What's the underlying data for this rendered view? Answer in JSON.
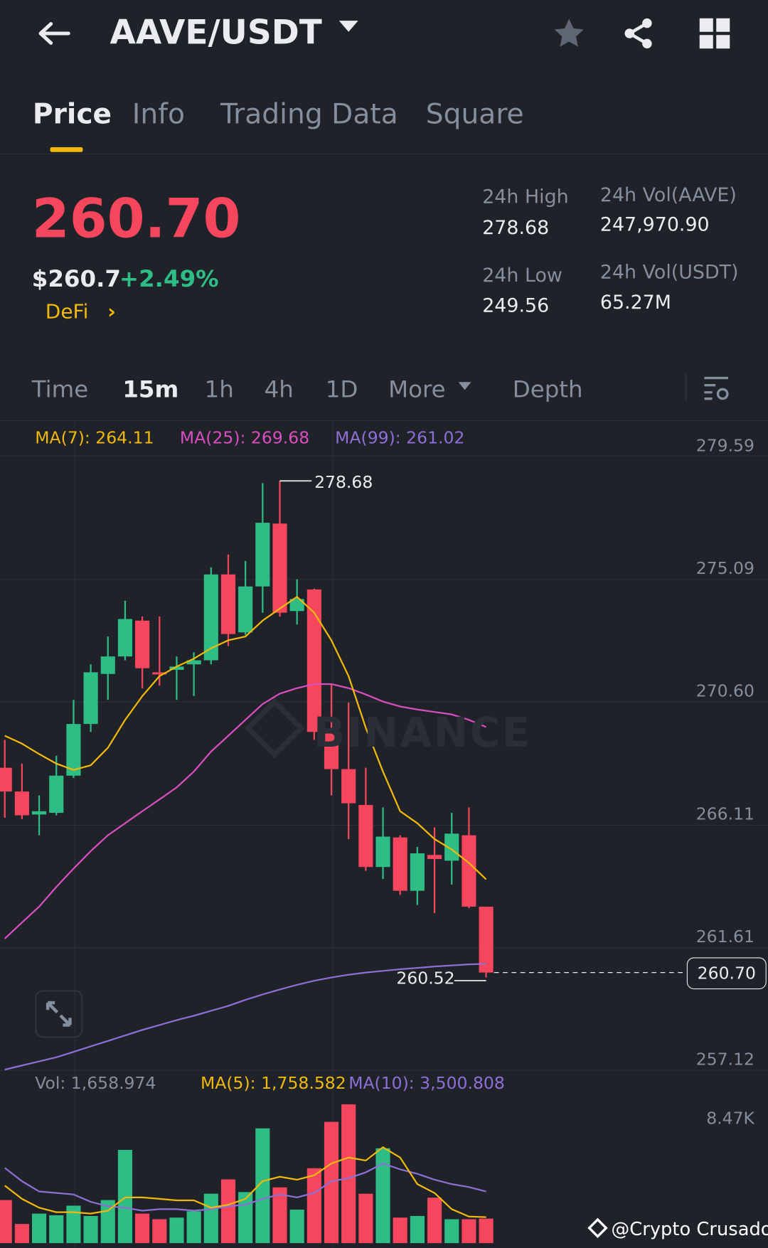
{
  "header": {
    "title": "AAVE/USDT",
    "icons": [
      "back-arrow-icon",
      "caret-down-icon",
      "star-icon",
      "share-icon",
      "grid-icon"
    ]
  },
  "tabs": [
    {
      "label": "Price",
      "active": true
    },
    {
      "label": "Info"
    },
    {
      "label": "Trading Data"
    },
    {
      "label": "Square"
    }
  ],
  "ticker": {
    "last_price": "260.70",
    "usd_price": "$260.7",
    "change": "+2.49%",
    "tag": "DeFi",
    "stats": {
      "high_label": "24h High",
      "high": "278.68",
      "low_label": "24h Low",
      "low": "249.56",
      "vol_base_label": "24h Vol(AAVE)",
      "vol_base": "247,970.90",
      "vol_quote_label": "24h Vol(USDT)",
      "vol_quote": "65.27M"
    }
  },
  "intervals": [
    {
      "label": "Time"
    },
    {
      "label": "15m",
      "active": true
    },
    {
      "label": "1h"
    },
    {
      "label": "4h"
    },
    {
      "label": "1D"
    },
    {
      "label": "More"
    },
    {
      "label": "Depth"
    }
  ],
  "colors": {
    "up": "#2ebd85",
    "down": "#f6465d",
    "ma7": "#f0b90b",
    "ma25": "#d94fbf",
    "ma99": "#8e6fd6",
    "accent": "#f0b90b",
    "bg": "#1f2229"
  },
  "chart_data": {
    "type": "candlestick",
    "interval": "15m",
    "ma_legend": {
      "ma7": "MA(7): 264.11",
      "ma25": "MA(25): 269.68",
      "ma99": "MA(99): 261.02"
    },
    "y_ticks": [
      "279.59",
      "275.09",
      "270.60",
      "266.11",
      "261.61",
      "257.12"
    ],
    "ylim": [
      257.12,
      279.59
    ],
    "high_label": "278.68",
    "low_label": "260.52",
    "current_price": "260.70",
    "watermark": "BINANCE",
    "candles": [
      [
        268.19,
        269.21,
        266.36,
        267.32
      ],
      [
        267.32,
        268.34,
        266.31,
        266.45
      ],
      [
        266.48,
        267.18,
        265.72,
        266.6
      ],
      [
        266.54,
        268.63,
        266.45,
        267.9
      ],
      [
        267.9,
        270.67,
        267.82,
        269.79
      ],
      [
        269.79,
        271.97,
        269.5,
        271.68
      ],
      [
        271.62,
        272.99,
        270.67,
        272.26
      ],
      [
        272.26,
        274.3,
        272.12,
        273.63
      ],
      [
        273.57,
        273.72,
        271.1,
        271.83
      ],
      [
        271.68,
        273.72,
        271.19,
        271.6
      ],
      [
        271.77,
        272.26,
        270.67,
        271.89
      ],
      [
        271.97,
        272.41,
        270.81,
        272.12
      ],
      [
        272.12,
        275.52,
        271.97,
        275.26
      ],
      [
        275.26,
        275.99,
        272.64,
        273.08
      ],
      [
        273.14,
        275.75,
        273.05,
        274.82
      ],
      [
        274.82,
        278.6,
        273.86,
        277.15
      ],
      [
        277.12,
        278.68,
        273.72,
        273.86
      ],
      [
        273.92,
        275.08,
        273.43,
        274.36
      ],
      [
        274.71,
        274.74,
        269.21,
        269.5
      ],
      [
        269.5,
        271.25,
        267.18,
        268.14
      ],
      [
        268.14,
        270.58,
        265.58,
        266.89
      ],
      [
        266.83,
        268.19,
        264.42,
        264.56
      ],
      [
        264.56,
        266.74,
        264.12,
        265.67
      ],
      [
        265.64,
        265.72,
        263.54,
        263.69
      ],
      [
        263.69,
        265.29,
        263.17,
        265.06
      ],
      [
        265.0,
        266.01,
        262.87,
        264.85
      ],
      [
        264.79,
        266.54,
        263.92,
        265.78
      ],
      [
        265.72,
        266.74,
        263.05,
        263.11
      ],
      [
        263.11,
        263.11,
        260.52,
        260.7
      ]
    ],
    "ma7": [
      269.36,
      269.07,
      268.69,
      268.34,
      268.11,
      268.28,
      268.92,
      269.94,
      270.81,
      271.54,
      271.89,
      272.18,
      272.56,
      272.85,
      272.99,
      273.57,
      274.01,
      274.44,
      273.86,
      272.85,
      271.54,
      269.65,
      268.05,
      266.6,
      266.16,
      265.58,
      265.2,
      264.71,
      264.11
    ],
    "ma25": [
      261.94,
      262.53,
      263.11,
      263.83,
      264.5,
      265.14,
      265.72,
      266.16,
      266.6,
      267.03,
      267.47,
      268.05,
      268.78,
      269.36,
      269.94,
      270.52,
      270.9,
      271.1,
      271.25,
      271.25,
      271.1,
      270.87,
      270.61,
      270.43,
      270.32,
      270.23,
      270.14,
      269.94,
      269.68
    ],
    "ma99": [
      257.15,
      257.3,
      257.45,
      257.6,
      257.8,
      258.0,
      258.2,
      258.4,
      258.6,
      258.78,
      258.96,
      259.12,
      259.3,
      259.48,
      259.7,
      259.9,
      260.08,
      260.25,
      260.4,
      260.52,
      260.62,
      260.7,
      260.76,
      260.82,
      260.87,
      260.92,
      260.96,
      261.0,
      261.02
    ],
    "volume": {
      "legend": {
        "vol": "Vol: 1,658.974",
        "ma5": "MA(5): 1,758.582",
        "ma10": "MA(10): 3,500.808"
      },
      "y_tick": "8.47K",
      "unit": "K",
      "values": [
        2.92,
        1.3,
        2.0,
        1.89,
        2.54,
        1.84,
        2.92,
        6.32,
        2.0,
        1.62,
        1.73,
        2.16,
        3.35,
        4.32,
        3.46,
        7.78,
        3.78,
        2.27,
        5.08,
        8.22,
        9.41,
        3.35,
        6.43,
        1.73,
        1.84,
        3.08,
        1.62,
        1.62,
        1.66
      ],
      "ma5": [
        3.9,
        3.0,
        2.4,
        2.1,
        2.1,
        2.0,
        2.2,
        3.1,
        3.1,
        3.0,
        2.9,
        2.9,
        2.4,
        2.6,
        3.0,
        4.2,
        4.5,
        4.3,
        4.6,
        5.4,
        5.8,
        5.6,
        6.5,
        5.8,
        4.0,
        3.4,
        2.3,
        1.8,
        1.76
      ],
      "ma10": [
        5.1,
        4.2,
        3.5,
        3.4,
        3.3,
        2.8,
        2.5,
        2.4,
        2.2,
        2.3,
        2.3,
        2.2,
        2.3,
        2.5,
        2.6,
        3.0,
        3.3,
        3.1,
        3.4,
        4.2,
        4.4,
        4.8,
        5.4,
        5.0,
        4.7,
        4.3,
        4.0,
        3.8,
        3.5
      ]
    }
  },
  "credit": "@Crypto Crusador"
}
